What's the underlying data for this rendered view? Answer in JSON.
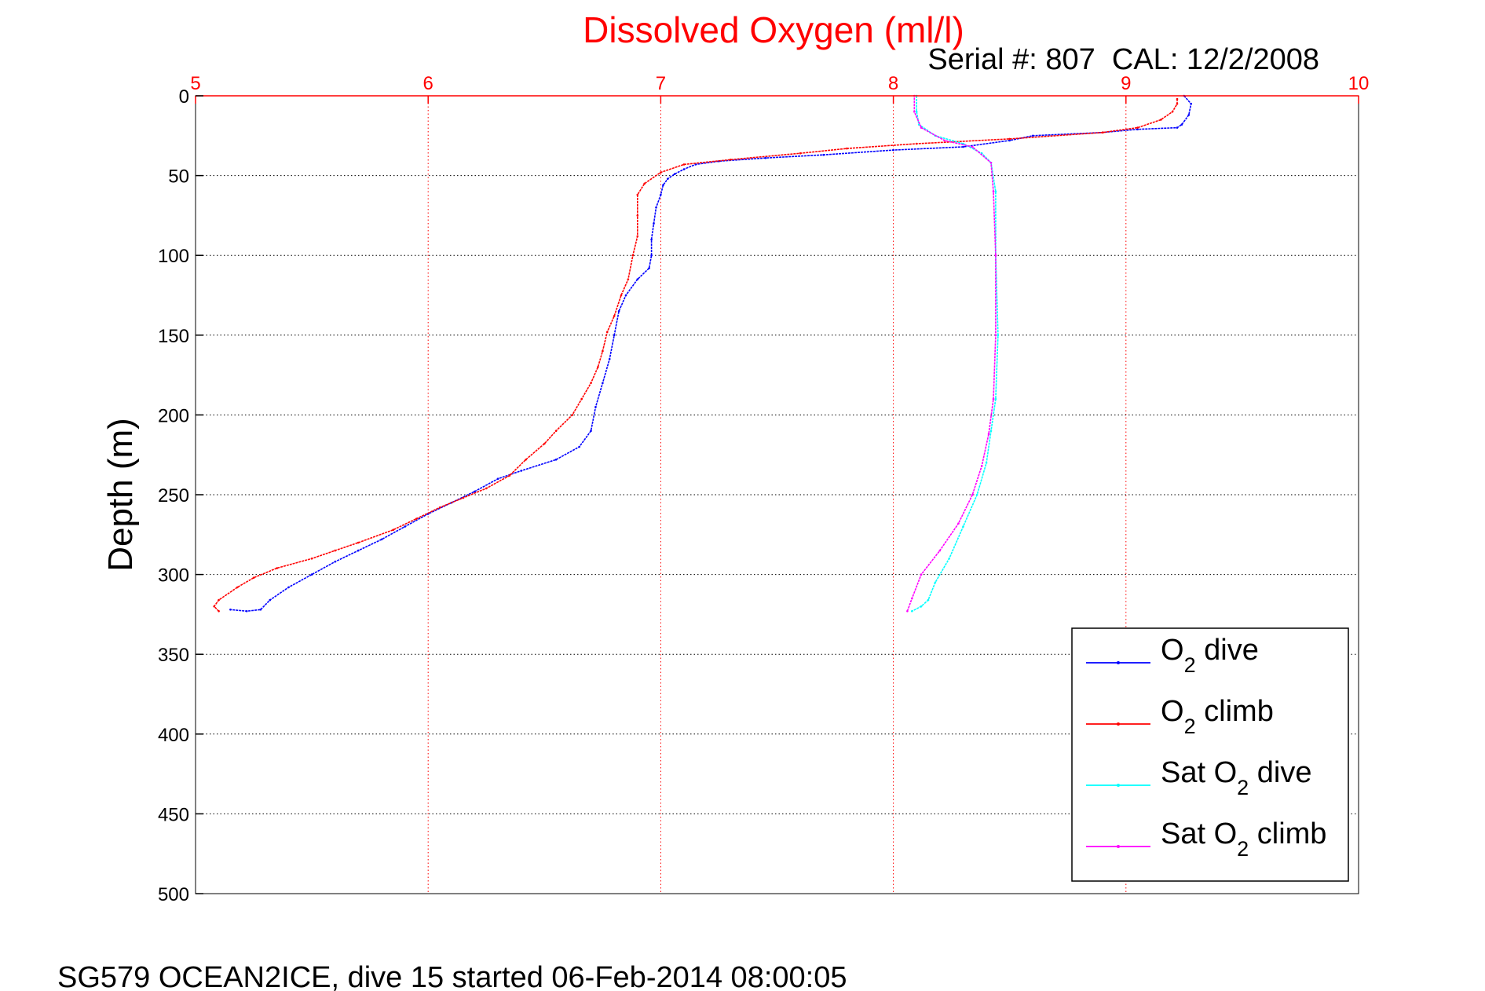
{
  "chart_data": {
    "type": "line",
    "title": "Dissolved Oxygen (ml/l)",
    "subtitle": "Serial #: 807  CAL: 12/2/2008",
    "ylabel": "Depth (m)",
    "xlim": [
      5,
      10
    ],
    "ylim": [
      0,
      500
    ],
    "y_reversed": true,
    "x_axis_position": "top",
    "x_ticks": [
      5,
      6,
      7,
      8,
      9,
      10
    ],
    "y_ticks": [
      0,
      50,
      100,
      150,
      200,
      250,
      300,
      350,
      400,
      450,
      500
    ],
    "grid": true,
    "accent_color": "#ff0000",
    "legend_position": "bottom-right",
    "legend": [
      {
        "base": "O",
        "sub": "2",
        "rest": " dive",
        "color": "#0000ff"
      },
      {
        "base": "O",
        "sub": "2",
        "rest": " climb",
        "color": "#ff0000"
      },
      {
        "base": "Sat O",
        "sub": "2",
        "rest": " dive",
        "color": "#00ffff"
      },
      {
        "base": "Sat O",
        "sub": "2",
        "rest": " climb",
        "color": "#ff00ff"
      }
    ],
    "series": [
      {
        "name": "O2 dive",
        "color": "#0000ff",
        "points": [
          [
            9.25,
            0
          ],
          [
            9.28,
            5
          ],
          [
            9.27,
            12
          ],
          [
            9.24,
            18
          ],
          [
            9.22,
            20
          ],
          [
            9.05,
            21
          ],
          [
            8.9,
            23
          ],
          [
            8.6,
            25
          ],
          [
            8.5,
            28
          ],
          [
            8.3,
            32
          ],
          [
            8.0,
            34
          ],
          [
            7.7,
            37
          ],
          [
            7.45,
            39
          ],
          [
            7.25,
            41
          ],
          [
            7.15,
            43
          ],
          [
            7.1,
            46
          ],
          [
            7.06,
            49
          ],
          [
            7.03,
            52
          ],
          [
            7.01,
            56
          ],
          [
            7.0,
            62
          ],
          [
            6.98,
            70
          ],
          [
            6.97,
            80
          ],
          [
            6.96,
            90
          ],
          [
            6.96,
            100
          ],
          [
            6.95,
            108
          ],
          [
            6.9,
            115
          ],
          [
            6.85,
            125
          ],
          [
            6.82,
            135
          ],
          [
            6.8,
            150
          ],
          [
            6.78,
            165
          ],
          [
            6.75,
            180
          ],
          [
            6.72,
            195
          ],
          [
            6.7,
            210
          ],
          [
            6.65,
            220
          ],
          [
            6.55,
            228
          ],
          [
            6.4,
            235
          ],
          [
            6.3,
            240
          ],
          [
            6.2,
            248
          ],
          [
            6.1,
            255
          ],
          [
            6.0,
            262
          ],
          [
            5.9,
            270
          ],
          [
            5.8,
            278
          ],
          [
            5.7,
            285
          ],
          [
            5.6,
            292
          ],
          [
            5.5,
            300
          ],
          [
            5.4,
            308
          ],
          [
            5.32,
            316
          ],
          [
            5.28,
            322
          ],
          [
            5.22,
            323
          ],
          [
            5.15,
            322
          ]
        ]
      },
      {
        "name": "O2 climb",
        "color": "#ff0000",
        "points": [
          [
            5.1,
            323
          ],
          [
            5.08,
            320
          ],
          [
            5.1,
            316
          ],
          [
            5.18,
            308
          ],
          [
            5.25,
            302
          ],
          [
            5.35,
            296
          ],
          [
            5.5,
            290
          ],
          [
            5.6,
            285
          ],
          [
            5.7,
            280
          ],
          [
            5.85,
            272
          ],
          [
            5.95,
            265
          ],
          [
            6.05,
            258
          ],
          [
            6.15,
            252
          ],
          [
            6.25,
            246
          ],
          [
            6.35,
            238
          ],
          [
            6.42,
            228
          ],
          [
            6.5,
            218
          ],
          [
            6.55,
            210
          ],
          [
            6.62,
            200
          ],
          [
            6.66,
            190
          ],
          [
            6.7,
            180
          ],
          [
            6.73,
            170
          ],
          [
            6.75,
            160
          ],
          [
            6.77,
            148
          ],
          [
            6.8,
            138
          ],
          [
            6.83,
            125
          ],
          [
            6.86,
            115
          ],
          [
            6.88,
            100
          ],
          [
            6.9,
            88
          ],
          [
            6.9,
            75
          ],
          [
            6.9,
            62
          ],
          [
            6.93,
            55
          ],
          [
            7.0,
            48
          ],
          [
            7.1,
            43
          ],
          [
            7.3,
            40
          ],
          [
            7.6,
            36
          ],
          [
            7.8,
            33
          ],
          [
            8.1,
            30
          ],
          [
            8.5,
            27
          ],
          [
            8.9,
            23
          ],
          [
            9.05,
            20
          ],
          [
            9.15,
            15
          ],
          [
            9.2,
            10
          ],
          [
            9.22,
            5
          ],
          [
            9.22,
            2
          ]
        ]
      },
      {
        "name": "Sat O2 dive",
        "color": "#00ffff",
        "points": [
          [
            8.1,
            0
          ],
          [
            8.1,
            10
          ],
          [
            8.11,
            18
          ],
          [
            8.18,
            25
          ],
          [
            8.3,
            30
          ],
          [
            8.38,
            36
          ],
          [
            8.42,
            42
          ],
          [
            8.44,
            60
          ],
          [
            8.44,
            100
          ],
          [
            8.45,
            150
          ],
          [
            8.44,
            190
          ],
          [
            8.42,
            210
          ],
          [
            8.4,
            230
          ],
          [
            8.36,
            250
          ],
          [
            8.3,
            270
          ],
          [
            8.24,
            290
          ],
          [
            8.18,
            305
          ],
          [
            8.15,
            316
          ],
          [
            8.12,
            320
          ],
          [
            8.08,
            323
          ]
        ]
      },
      {
        "name": "Sat O2 climb",
        "color": "#ff00ff",
        "points": [
          [
            8.06,
            323
          ],
          [
            8.08,
            315
          ],
          [
            8.12,
            300
          ],
          [
            8.2,
            285
          ],
          [
            8.28,
            268
          ],
          [
            8.34,
            250
          ],
          [
            8.38,
            232
          ],
          [
            8.41,
            212
          ],
          [
            8.43,
            190
          ],
          [
            8.44,
            150
          ],
          [
            8.44,
            100
          ],
          [
            8.43,
            60
          ],
          [
            8.42,
            42
          ],
          [
            8.34,
            32
          ],
          [
            8.22,
            28
          ],
          [
            8.12,
            20
          ],
          [
            8.09,
            10
          ],
          [
            8.09,
            0
          ]
        ]
      }
    ]
  },
  "footer": "SG579 OCEAN2ICE, dive 15 started 06-Feb-2014 08:00:05"
}
